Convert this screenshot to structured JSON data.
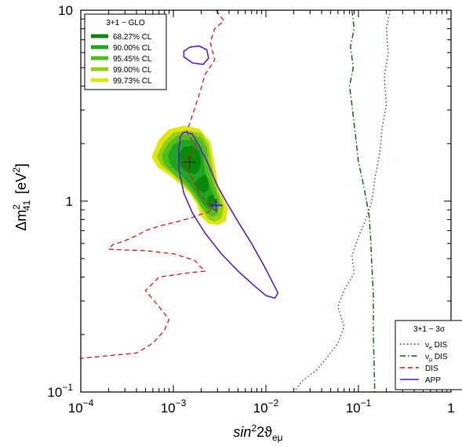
{
  "chart_data": {
    "type": "contour",
    "xscale": "log",
    "yscale": "log",
    "xlim": [
      0.0001,
      1
    ],
    "ylim": [
      0.1,
      10
    ],
    "xlabel_main": "sin",
    "xlabel_sup": "2",
    "xlabel_rest": "2ϑ",
    "xlabel_sub": "eμ",
    "ylabel_main": "Δm",
    "ylabel_sup": "2",
    "ylabel_sub": "41",
    "ylabel_unit": "[eV",
    "ylabel_unit_sup": "2",
    "ylabel_unit_end": "]",
    "xticks": [
      {
        "value": 0.0001,
        "base": "10",
        "exp": "−4"
      },
      {
        "value": 0.001,
        "base": "10",
        "exp": "−3"
      },
      {
        "value": 0.01,
        "base": "10",
        "exp": "−2"
      },
      {
        "value": 0.1,
        "base": "10",
        "exp": "−1"
      },
      {
        "value": 1,
        "base": "1",
        "exp": ""
      }
    ],
    "yticks": [
      {
        "value": 0.1,
        "base": "10",
        "exp": "−1"
      },
      {
        "value": 1,
        "base": "1",
        "exp": ""
      },
      {
        "value": 10,
        "base": "10",
        "exp": ""
      }
    ],
    "legend_glo": {
      "title": "3+1 − GLO",
      "position": "top-left",
      "entries": [
        {
          "label": "68.27% CL",
          "color": "#0a8a0a"
        },
        {
          "label": "90.00% CL",
          "color": "#1fa51f"
        },
        {
          "label": "95.45% CL",
          "color": "#52bd1e"
        },
        {
          "label": "99.00% CL",
          "color": "#95cf14"
        },
        {
          "label": "99.73% CL",
          "color": "#dfe60b"
        }
      ]
    },
    "legend_3sigma": {
      "title": "3+1 − 3σ",
      "position": "bottom-right",
      "entries": [
        {
          "label_main": "ν",
          "label_sub": "e",
          "label_rest": " DIS",
          "color": "#8b1a1a",
          "dash": "1.5,3"
        },
        {
          "label_main": "ν",
          "label_sub": "μ",
          "label_rest": " DIS",
          "color": "#0b5e0b",
          "dash": "7,3,1.5,3"
        },
        {
          "label_main": "DIS",
          "label_sub": "",
          "label_rest": "",
          "color": "#e8141c",
          "dash": "6,4"
        },
        {
          "label_main": "APP",
          "label_sub": "",
          "label_rest": "",
          "color": "#5a1fd6",
          "dash": ""
        }
      ]
    },
    "best_fit_points": [
      {
        "name": "GLO best fit",
        "x": 0.0015,
        "y": 1.6,
        "color": "#1a4d1a"
      },
      {
        "name": "APP best fit",
        "x": 0.0029,
        "y": 0.95,
        "color": "#4a1fc8"
      }
    ],
    "curves": {
      "nue_dis": {
        "color": "#8b1a1a",
        "points": [
          [
            0.22,
            10
          ],
          [
            0.2,
            8
          ],
          [
            0.21,
            6
          ],
          [
            0.19,
            4.5
          ],
          [
            0.2,
            3.2
          ],
          [
            0.18,
            2.4
          ],
          [
            0.17,
            1.8
          ],
          [
            0.15,
            1.3
          ],
          [
            0.14,
            1.0
          ],
          [
            0.12,
            0.8
          ],
          [
            0.1,
            0.65
          ],
          [
            0.085,
            0.52
          ],
          [
            0.09,
            0.42
          ],
          [
            0.07,
            0.34
          ],
          [
            0.06,
            0.28
          ],
          [
            0.07,
            0.22
          ],
          [
            0.06,
            0.18
          ],
          [
            0.045,
            0.15
          ],
          [
            0.035,
            0.13
          ],
          [
            0.025,
            0.115
          ],
          [
            0.02,
            0.1
          ]
        ]
      },
      "numu_dis": {
        "color": "#0b5e0b",
        "points": [
          [
            0.085,
            10
          ],
          [
            0.09,
            8
          ],
          [
            0.082,
            6.5
          ],
          [
            0.088,
            5
          ],
          [
            0.08,
            4
          ],
          [
            0.085,
            3.2
          ],
          [
            0.09,
            2.5
          ],
          [
            0.095,
            2
          ],
          [
            0.1,
            1.6
          ],
          [
            0.11,
            1.3
          ],
          [
            0.12,
            1.05
          ],
          [
            0.13,
            0.85
          ],
          [
            0.135,
            0.65
          ],
          [
            0.14,
            0.45
          ],
          [
            0.145,
            0.32
          ],
          [
            0.145,
            0.2
          ],
          [
            0.15,
            0.1
          ]
        ]
      },
      "dis": {
        "color": "#e8141c",
        "points": [
          [
            0.0029,
            10
          ],
          [
            0.0035,
            8.8
          ],
          [
            0.0028,
            8.0
          ],
          [
            0.0025,
            6.8
          ],
          [
            0.0028,
            5.5
          ],
          [
            0.0022,
            4.6
          ],
          [
            0.0019,
            3.6
          ],
          [
            0.0016,
            2.8
          ],
          [
            0.0014,
            2.3
          ],
          [
            0.0018,
            1.9
          ],
          [
            0.0013,
            1.6
          ],
          [
            0.0016,
            1.3
          ],
          [
            0.0019,
            1.1
          ],
          [
            0.0023,
            0.98
          ],
          [
            0.0028,
            0.9
          ],
          [
            0.0021,
            0.86
          ],
          [
            0.0016,
            0.82
          ],
          [
            0.0011,
            0.78
          ],
          [
            0.0007,
            0.74
          ],
          [
            0.0005,
            0.7
          ],
          [
            0.0004,
            0.66
          ],
          [
            0.0003,
            0.62
          ],
          [
            0.00022,
            0.59
          ],
          [
            0.0002,
            0.56
          ],
          [
            0.0005,
            0.55
          ],
          [
            0.001,
            0.53
          ],
          [
            0.0017,
            0.49
          ],
          [
            0.0019,
            0.46
          ],
          [
            0.0022,
            0.43
          ],
          [
            0.0014,
            0.42
          ],
          [
            0.0007,
            0.4
          ],
          [
            0.0005,
            0.34
          ],
          [
            0.0007,
            0.28
          ],
          [
            0.0009,
            0.24
          ],
          [
            0.0008,
            0.21
          ],
          [
            0.0006,
            0.18
          ],
          [
            0.0004,
            0.16
          ],
          [
            0.0002,
            0.155
          ],
          [
            0.0001,
            0.15
          ]
        ]
      },
      "app_main": {
        "color": "#5a1fd6",
        "points": [
          [
            0.0013,
            2.3
          ],
          [
            0.0016,
            2.25
          ],
          [
            0.0019,
            1.95
          ],
          [
            0.0024,
            1.55
          ],
          [
            0.003,
            1.2
          ],
          [
            0.0037,
            1.0
          ],
          [
            0.005,
            0.78
          ],
          [
            0.007,
            0.6
          ],
          [
            0.0095,
            0.46
          ],
          [
            0.012,
            0.37
          ],
          [
            0.0135,
            0.33
          ],
          [
            0.0125,
            0.31
          ],
          [
            0.01,
            0.32
          ],
          [
            0.0075,
            0.36
          ],
          [
            0.005,
            0.43
          ],
          [
            0.0033,
            0.53
          ],
          [
            0.0022,
            0.68
          ],
          [
            0.0016,
            0.87
          ],
          [
            0.0013,
            1.1
          ],
          [
            0.00115,
            1.45
          ],
          [
            0.00115,
            1.9
          ],
          [
            0.0012,
            2.2
          ],
          [
            0.0013,
            2.3
          ]
        ]
      },
      "app_island": {
        "color": "#5a1fd6",
        "points": [
          [
            0.0015,
            6.4
          ],
          [
            0.0019,
            6.5
          ],
          [
            0.0023,
            6.2
          ],
          [
            0.0024,
            5.6
          ],
          [
            0.0021,
            5.2
          ],
          [
            0.0016,
            5.3
          ],
          [
            0.0013,
            5.7
          ],
          [
            0.0013,
            6.1
          ],
          [
            0.0015,
            6.4
          ]
        ]
      }
    },
    "glo_regions": [
      {
        "level": "99.73% CL",
        "color": "#dfe60b",
        "points": [
          [
            0.00058,
            1.7
          ],
          [
            0.0007,
            2.1
          ],
          [
            0.0009,
            2.38
          ],
          [
            0.0013,
            2.48
          ],
          [
            0.0019,
            2.4
          ],
          [
            0.0025,
            2.05
          ],
          [
            0.0028,
            1.55
          ],
          [
            0.0031,
            1.15
          ],
          [
            0.0039,
            0.92
          ],
          [
            0.0037,
            0.79
          ],
          [
            0.0031,
            0.75
          ],
          [
            0.0024,
            0.76
          ],
          [
            0.002,
            0.83
          ],
          [
            0.0018,
            0.96
          ],
          [
            0.0015,
            1.1
          ],
          [
            0.0012,
            1.22
          ],
          [
            0.0009,
            1.37
          ],
          [
            0.00068,
            1.5
          ],
          [
            0.00058,
            1.7
          ]
        ]
      },
      {
        "level": "99.00% CL",
        "color": "#95cf14",
        "points": [
          [
            0.00066,
            1.72
          ],
          [
            0.0008,
            2.05
          ],
          [
            0.001,
            2.28
          ],
          [
            0.0014,
            2.35
          ],
          [
            0.002,
            2.27
          ],
          [
            0.0024,
            1.98
          ],
          [
            0.0026,
            1.55
          ],
          [
            0.0029,
            1.2
          ],
          [
            0.0035,
            0.94
          ],
          [
            0.0033,
            0.81
          ],
          [
            0.0028,
            0.78
          ],
          [
            0.0024,
            0.8
          ],
          [
            0.0021,
            0.88
          ],
          [
            0.0018,
            1.0
          ],
          [
            0.0015,
            1.13
          ],
          [
            0.0012,
            1.26
          ],
          [
            0.00095,
            1.4
          ],
          [
            0.00074,
            1.54
          ],
          [
            0.00066,
            1.72
          ]
        ]
      },
      {
        "level": "95.45% CL",
        "color": "#52bd1e",
        "points": [
          [
            0.00075,
            1.75
          ],
          [
            0.00088,
            2.0
          ],
          [
            0.0011,
            2.2
          ],
          [
            0.0015,
            2.25
          ],
          [
            0.002,
            2.15
          ],
          [
            0.0023,
            1.9
          ],
          [
            0.0024,
            1.55
          ],
          [
            0.0027,
            1.25
          ],
          [
            0.0032,
            0.98
          ],
          [
            0.003,
            0.85
          ],
          [
            0.0026,
            0.83
          ],
          [
            0.0023,
            0.86
          ],
          [
            0.002,
            0.94
          ],
          [
            0.0017,
            1.06
          ],
          [
            0.0014,
            1.2
          ],
          [
            0.0011,
            1.34
          ],
          [
            0.0009,
            1.46
          ],
          [
            0.00078,
            1.6
          ],
          [
            0.00075,
            1.75
          ]
        ]
      },
      {
        "level": "90.00% CL",
        "color": "#1fa51f",
        "points": [
          [
            0.00088,
            1.75
          ],
          [
            0.001,
            1.98
          ],
          [
            0.0013,
            2.1
          ],
          [
            0.0017,
            2.08
          ],
          [
            0.002,
            1.92
          ],
          [
            0.0021,
            1.68
          ],
          [
            0.0022,
            1.42
          ],
          [
            0.0025,
            1.2
          ],
          [
            0.0029,
            1.0
          ],
          [
            0.0027,
            0.9
          ],
          [
            0.0024,
            0.9
          ],
          [
            0.0021,
            0.96
          ],
          [
            0.0018,
            1.08
          ],
          [
            0.0015,
            1.22
          ],
          [
            0.0012,
            1.38
          ],
          [
            0.00098,
            1.5
          ],
          [
            0.0009,
            1.62
          ],
          [
            0.00088,
            1.75
          ]
        ]
      },
      {
        "level": "68.27% CL",
        "color": "#0a8a0a",
        "points": [
          [
            0.0011,
            1.72
          ],
          [
            0.0013,
            1.92
          ],
          [
            0.0016,
            1.95
          ],
          [
            0.0019,
            1.82
          ],
          [
            0.002,
            1.62
          ],
          [
            0.0019,
            1.45
          ],
          [
            0.0017,
            1.38
          ],
          [
            0.0014,
            1.42
          ],
          [
            0.0012,
            1.52
          ],
          [
            0.0011,
            1.72
          ]
        ]
      },
      {
        "level": "68.27% CL",
        "color": "#0a8a0a",
        "points": [
          [
            0.0019,
            1.32
          ],
          [
            0.0022,
            1.38
          ],
          [
            0.0024,
            1.28
          ],
          [
            0.0024,
            1.15
          ],
          [
            0.0021,
            1.1
          ],
          [
            0.0018,
            1.16
          ],
          [
            0.0017,
            1.25
          ],
          [
            0.0019,
            1.32
          ]
        ]
      },
      {
        "level": "68.27% CL",
        "color": "#0a8a0a",
        "points": [
          [
            0.0024,
            1.06
          ],
          [
            0.0027,
            1.08
          ],
          [
            0.0029,
            0.98
          ],
          [
            0.0027,
            0.92
          ],
          [
            0.0024,
            0.93
          ],
          [
            0.0023,
            0.99
          ],
          [
            0.0024,
            1.06
          ]
        ]
      }
    ]
  }
}
